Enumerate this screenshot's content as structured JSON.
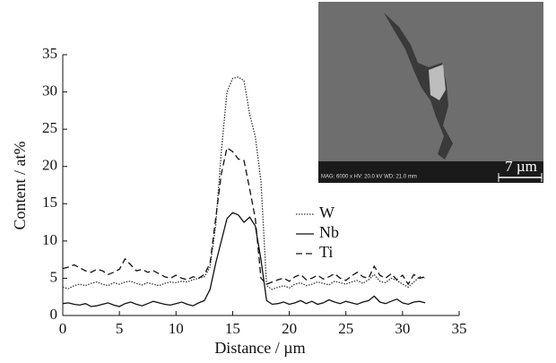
{
  "chart_data": {
    "type": "line",
    "xlabel": "Distance / µm",
    "ylabel": "Content / at%",
    "xlim": [
      0,
      35
    ],
    "ylim": [
      0,
      35
    ],
    "xticks": [
      0,
      5,
      10,
      15,
      20,
      25,
      30,
      35
    ],
    "yticks": [
      0,
      5,
      10,
      15,
      20,
      25,
      30,
      35
    ],
    "legend": "center-right",
    "x": [
      0,
      0.5,
      1,
      1.5,
      2,
      2.5,
      3,
      3.5,
      4,
      4.5,
      5,
      5.5,
      6,
      6.5,
      7,
      7.5,
      8,
      8.5,
      9,
      9.5,
      10,
      10.5,
      11,
      11.5,
      12,
      12.5,
      13,
      13.5,
      14,
      14.5,
      15,
      15.5,
      16,
      16.5,
      17,
      17.5,
      18,
      18.5,
      19,
      19.5,
      20,
      20.5,
      21,
      21.5,
      22,
      22.5,
      23,
      23.5,
      24,
      24.5,
      25,
      25.5,
      26,
      26.5,
      27,
      27.5,
      28,
      28.5,
      29,
      29.5,
      30,
      30.5,
      31,
      31.5,
      32
    ],
    "series": [
      {
        "name": "W",
        "color": "#333333",
        "style": "dotted",
        "values": [
          3.8,
          3.6,
          4.0,
          4.2,
          4.0,
          4.3,
          4.5,
          4.2,
          4.0,
          4.4,
          4.2,
          4.5,
          4.6,
          4.3,
          4.1,
          4.4,
          4.2,
          4.0,
          4.3,
          4.5,
          4.4,
          4.6,
          4.5,
          4.8,
          5.0,
          5.2,
          6.5,
          12,
          22,
          30,
          31.8,
          32,
          31.5,
          27,
          24,
          18,
          4,
          3.5,
          3.8,
          4.0,
          3.7,
          4.2,
          4.4,
          4.0,
          4.2,
          4.5,
          4.3,
          4.1,
          4.6,
          4.4,
          4.2,
          4.5,
          4.7,
          4.3,
          4.8,
          5.5,
          4.6,
          4.4,
          5.0,
          4.7,
          4.2,
          3.8,
          4.5,
          5.2,
          5.0
        ]
      },
      {
        "name": "Nb",
        "color": "#111111",
        "style": "solid",
        "values": [
          1.6,
          1.7,
          1.5,
          1.4,
          1.6,
          1.2,
          1.3,
          1.5,
          1.7,
          1.4,
          1.2,
          1.6,
          1.8,
          1.5,
          1.3,
          1.6,
          1.9,
          1.7,
          1.5,
          1.4,
          1.6,
          1.8,
          1.5,
          1.3,
          1.7,
          2.0,
          3.5,
          7,
          10,
          13,
          13.8,
          13.5,
          12.5,
          13.2,
          12,
          7.5,
          2.0,
          1.5,
          1.6,
          1.8,
          1.5,
          1.7,
          2.0,
          1.6,
          1.9,
          1.5,
          1.7,
          2.1,
          1.8,
          1.6,
          1.9,
          1.7,
          1.5,
          1.8,
          2.0,
          2.6,
          1.8,
          1.6,
          1.9,
          2.2,
          1.7,
          1.5,
          1.8,
          1.9,
          1.7
        ]
      },
      {
        "name": "Ti",
        "color": "#111111",
        "style": "dashed",
        "values": [
          6.3,
          6.5,
          6.8,
          6.4,
          6.0,
          5.8,
          6.2,
          6.0,
          5.5,
          5.8,
          6.2,
          7.6,
          6.8,
          6.0,
          6.2,
          5.8,
          6.0,
          5.6,
          5.2,
          5.0,
          5.4,
          5.0,
          4.8,
          5.2,
          5.0,
          5.5,
          7,
          13,
          19,
          22.5,
          22,
          21,
          20.8,
          17,
          13,
          5,
          4.2,
          4.5,
          4.8,
          5.0,
          4.6,
          5.2,
          5.5,
          4.8,
          5.0,
          5.4,
          4.9,
          5.2,
          5.6,
          5.0,
          4.7,
          5.3,
          5.8,
          5.2,
          5.0,
          6.6,
          5.4,
          5.0,
          5.6,
          4.8,
          5.4,
          4.2,
          5.5,
          5.0,
          5.2
        ]
      }
    ],
    "inset": {
      "scale_label": "7 µm",
      "info": "MAG: 6000 x    HV: 20.0 kV    WD: 21.0 mm"
    }
  }
}
